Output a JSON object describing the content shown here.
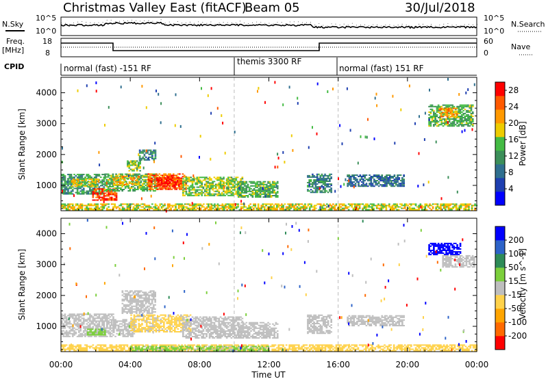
{
  "header": {
    "title": "Christmas Valley East (fitACF)",
    "beam": "Beam 05",
    "date": "30/Jul/2018"
  },
  "noise_panel": {
    "left_label": "N.Sky",
    "right_label": "N.Search",
    "left_ticks": [
      "10^5",
      "10^0"
    ],
    "right_ticks": [
      "10^5",
      "10^0"
    ]
  },
  "freq_panel": {
    "left_label_line1": "Freq.",
    "left_label_line2": "[MHz]",
    "right_label": "Nave",
    "left_ticks": [
      "18",
      "8"
    ],
    "right_ticks": [
      "60",
      "0"
    ]
  },
  "cpid_panel": {
    "label": "CPID",
    "segments": [
      {
        "label": "normal (fast) -151 RF",
        "start_hour": 0,
        "end_hour": 10
      },
      {
        "label": "themis 3300 RF",
        "start_hour": 10,
        "end_hour": 16
      },
      {
        "label": "normal (fast) 151 RF",
        "start_hour": 16,
        "end_hour": 24
      }
    ]
  },
  "colors": {
    "power_scale": [
      "#0000ff",
      "#1e3fb0",
      "#2f6f8f",
      "#3c8f5a",
      "#44bb44",
      "#eecc00",
      "#ff9900",
      "#ff5a00",
      "#ff0000"
    ],
    "velocity_scale": [
      "#ff0000",
      "#ff6a00",
      "#ffa500",
      "#ffd24a",
      "#bebebe",
      "#7ccf3c",
      "#2e8b57",
      "#2d63c8",
      "#0000ff"
    ],
    "grey": "#bebebe"
  },
  "chart_data": [
    {
      "type": "heatmap",
      "parameter": "Power",
      "ylabel": "Slant Range [km]",
      "xlabel": "",
      "xlim_hours": [
        0,
        24
      ],
      "ylim_km": [
        180,
        4500
      ],
      "yticks": [
        1000,
        2000,
        3000,
        4000
      ],
      "colorbar": {
        "label": "Power [dB]",
        "ticks": [
          4,
          8,
          12,
          16,
          20,
          24,
          28
        ],
        "range": [
          0,
          30
        ]
      },
      "echo_regions": [
        {
          "t0": 0.0,
          "t1": 2.5,
          "r0": 700,
          "r1": 1350,
          "value": 12
        },
        {
          "t0": 0.5,
          "t1": 2.2,
          "r0": 950,
          "r1": 1200,
          "value": 18
        },
        {
          "t0": 1.8,
          "t1": 3.2,
          "r0": 500,
          "r1": 900,
          "value": 26
        },
        {
          "t0": 2.5,
          "t1": 5.5,
          "r0": 800,
          "r1": 1350,
          "value": 14
        },
        {
          "t0": 3.0,
          "t1": 4.5,
          "r0": 1000,
          "r1": 1300,
          "value": 20
        },
        {
          "t0": 5.0,
          "t1": 7.2,
          "r0": 850,
          "r1": 1350,
          "value": 24
        },
        {
          "t0": 5.5,
          "t1": 6.8,
          "r0": 950,
          "r1": 1250,
          "value": 28
        },
        {
          "t0": 7.0,
          "t1": 10.5,
          "r0": 650,
          "r1": 1250,
          "value": 16
        },
        {
          "t0": 3.8,
          "t1": 4.6,
          "r0": 1450,
          "r1": 1800,
          "value": 16
        },
        {
          "t0": 4.5,
          "t1": 5.4,
          "r0": 1800,
          "r1": 2150,
          "value": 10
        },
        {
          "t0": 10.2,
          "t1": 12.5,
          "r0": 600,
          "r1": 1100,
          "value": 14
        },
        {
          "t0": 14.2,
          "t1": 15.6,
          "r0": 750,
          "r1": 1350,
          "value": 10
        },
        {
          "t0": 16.5,
          "t1": 19.8,
          "r0": 950,
          "r1": 1350,
          "value": 8
        },
        {
          "t0": 21.2,
          "t1": 23.8,
          "r0": 2900,
          "r1": 3600,
          "value": 14
        },
        {
          "t0": 21.8,
          "t1": 22.8,
          "r0": 3200,
          "r1": 3500,
          "value": 22
        },
        {
          "t0": 0.0,
          "t1": 24.0,
          "r0": 190,
          "r1": 380,
          "value": 18
        }
      ]
    },
    {
      "type": "heatmap",
      "parameter": "Velocity",
      "ylabel": "Slant Range [km]",
      "xlabel": "Time UT",
      "xlim_hours": [
        0,
        24
      ],
      "xticks": [
        "00:00",
        "04:00",
        "08:00",
        "12:00",
        "16:00",
        "20:00",
        "00:00"
      ],
      "ylim_km": [
        180,
        4500
      ],
      "yticks": [
        1000,
        2000,
        3000,
        4000
      ],
      "colorbar": {
        "label": "Velocity [m s^-1]",
        "ticks": [
          -200,
          -100,
          -50,
          -15,
          15,
          50,
          100,
          200
        ],
        "range": [
          -250,
          250
        ]
      },
      "echo_regions": [
        {
          "t0": 0.0,
          "t1": 3.0,
          "r0": 650,
          "r1": 1400,
          "value": 0
        },
        {
          "t0": 1.5,
          "t1": 2.5,
          "r0": 700,
          "r1": 900,
          "value": 60
        },
        {
          "t0": 3.0,
          "t1": 4.2,
          "r0": 650,
          "r1": 1200,
          "value": 0
        },
        {
          "t0": 4.0,
          "t1": 7.5,
          "r0": 800,
          "r1": 1350,
          "value": -40
        },
        {
          "t0": 7.0,
          "t1": 10.5,
          "r0": 600,
          "r1": 1300,
          "value": 0
        },
        {
          "t0": 3.5,
          "t1": 5.4,
          "r0": 1400,
          "r1": 2150,
          "value": 0
        },
        {
          "t0": 10.2,
          "t1": 12.5,
          "r0": 600,
          "r1": 1100,
          "value": 0
        },
        {
          "t0": 14.2,
          "t1": 15.6,
          "r0": 750,
          "r1": 1350,
          "value": 0
        },
        {
          "t0": 16.5,
          "t1": 19.8,
          "r0": 1000,
          "r1": 1350,
          "value": 0
        },
        {
          "t0": 21.2,
          "t1": 23.0,
          "r0": 3300,
          "r1": 3700,
          "value": 230
        },
        {
          "t0": 22.0,
          "t1": 23.8,
          "r0": 2900,
          "r1": 3300,
          "value": 0
        },
        {
          "t0": 0.0,
          "t1": 24.0,
          "r0": 190,
          "r1": 380,
          "value": -60
        },
        {
          "t0": 4.0,
          "t1": 12.0,
          "r0": 190,
          "r1": 330,
          "value": 40
        }
      ]
    }
  ]
}
